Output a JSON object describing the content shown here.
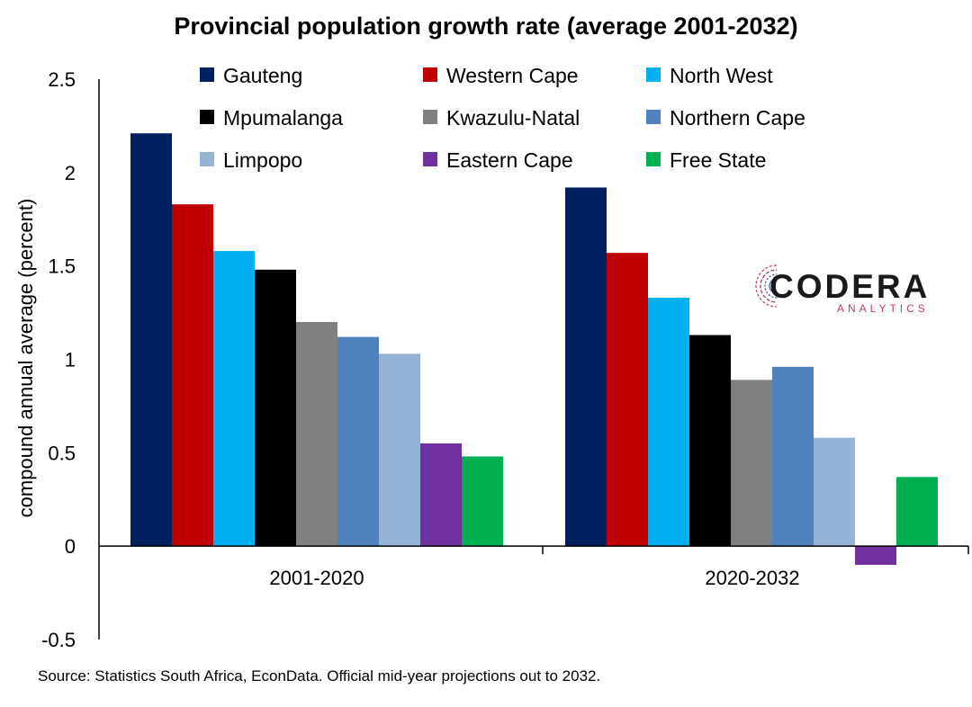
{
  "chart_data": {
    "type": "bar",
    "title": "Provincial population growth rate (average 2001-2032)",
    "ylabel": "compound annual average (percent)",
    "xlabel": "",
    "categories": [
      "2001-2020",
      "2020-2032"
    ],
    "ylim": [
      -0.5,
      2.5
    ],
    "yticks": [
      "-0.5",
      "0",
      "0.5",
      "1",
      "1.5",
      "2",
      "2.5"
    ],
    "legend_position": "top",
    "grid": false,
    "series": [
      {
        "name": "Gauteng",
        "color": "#002060",
        "values": [
          2.21,
          1.92
        ]
      },
      {
        "name": "Western Cape",
        "color": "#C00000",
        "values": [
          1.83,
          1.57
        ]
      },
      {
        "name": "North West",
        "color": "#00B0F0",
        "values": [
          1.58,
          1.33
        ]
      },
      {
        "name": "Mpumalanga",
        "color": "#000000",
        "values": [
          1.48,
          1.13
        ]
      },
      {
        "name": "Kwazulu-Natal",
        "color": "#808080",
        "values": [
          1.2,
          0.89
        ]
      },
      {
        "name": "Northern Cape",
        "color": "#4F81BD",
        "values": [
          1.12,
          0.96
        ]
      },
      {
        "name": "Limpopo",
        "color": "#95B3D7",
        "values": [
          1.03,
          0.58
        ]
      },
      {
        "name": "Eastern Cape",
        "color": "#7030A0",
        "values": [
          0.55,
          -0.1
        ]
      },
      {
        "name": "Free State",
        "color": "#00B050",
        "values": [
          0.48,
          0.37
        ]
      }
    ]
  },
  "logo": {
    "name": "CODERA",
    "tagline": "ANALYTICS"
  },
  "source": "Source: Statistics South Africa, EconData. Official mid-year projections out to 2032."
}
